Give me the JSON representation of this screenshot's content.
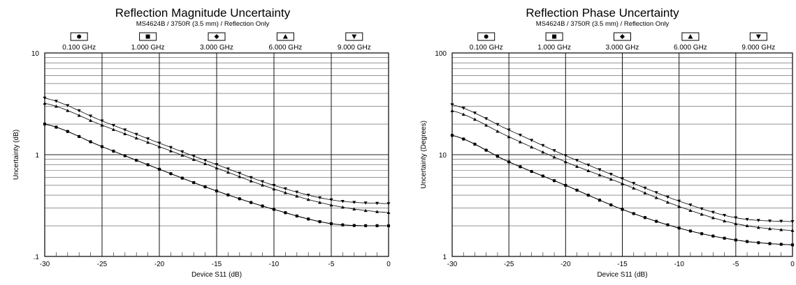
{
  "chart_data": [
    {
      "type": "line",
      "title": "Reflection Magnitude Uncertainty",
      "subtitle": "MS4624B / 3750R (3.5 mm) / Reflection Only",
      "xlabel": "Device S11 (dB)",
      "ylabel": "Uncertainty (dB)",
      "xlim": [
        -30,
        0
      ],
      "ylim": [
        0.1,
        10
      ],
      "yscale": "log",
      "grid": true,
      "legend_position": "top",
      "x_ticks": [
        "-30",
        "-25",
        "-20",
        "-15",
        "-10",
        "-5",
        "0"
      ],
      "y_ticks": [
        ".1",
        "1",
        "10"
      ],
      "x": [
        -30,
        -25,
        -20,
        -15,
        -10,
        -5,
        0
      ],
      "series": [
        {
          "name": "0.100 GHz",
          "marker": "circle",
          "values": [
            2.0,
            1.2,
            0.72,
            0.44,
            0.29,
            0.21,
            0.2
          ]
        },
        {
          "name": "1.000 GHz",
          "marker": "square",
          "values": [
            2.0,
            1.2,
            0.72,
            0.44,
            0.29,
            0.21,
            0.2
          ]
        },
        {
          "name": "3.000 GHz",
          "marker": "diamond",
          "values": [
            2.0,
            1.2,
            0.72,
            0.44,
            0.29,
            0.21,
            0.2
          ]
        },
        {
          "name": "6.000 GHz",
          "marker": "triangle-up",
          "values": [
            3.2,
            1.95,
            1.2,
            0.74,
            0.46,
            0.32,
            0.27
          ]
        },
        {
          "name": "9.000 GHz",
          "marker": "triangle-down",
          "values": [
            3.6,
            2.15,
            1.3,
            0.8,
            0.5,
            0.36,
            0.33
          ]
        }
      ]
    },
    {
      "type": "line",
      "title": "Reflection Phase Uncertainty",
      "subtitle": "MS4624B / 3750R (3.5 mm) / Reflection Only",
      "xlabel": "Device S11 (dB)",
      "ylabel": "Uncertainty (Degrees)",
      "xlim": [
        -30,
        0
      ],
      "ylim": [
        1,
        100
      ],
      "yscale": "log",
      "grid": true,
      "legend_position": "top",
      "x_ticks": [
        "-30",
        "-25",
        "-20",
        "-15",
        "-10",
        "-5",
        "0"
      ],
      "y_ticks": [
        "1",
        "10",
        "100"
      ],
      "x": [
        -30,
        -25,
        -20,
        -15,
        -10,
        -5,
        0
      ],
      "series": [
        {
          "name": "0.100 GHz",
          "marker": "circle",
          "values": [
            15.5,
            8.5,
            5.0,
            2.9,
            1.9,
            1.45,
            1.3
          ]
        },
        {
          "name": "1.000 GHz",
          "marker": "square",
          "values": [
            15.5,
            8.5,
            5.0,
            2.9,
            1.9,
            1.45,
            1.3
          ]
        },
        {
          "name": "3.000 GHz",
          "marker": "diamond",
          "values": [
            15.5,
            8.5,
            5.0,
            2.9,
            1.9,
            1.45,
            1.3
          ]
        },
        {
          "name": "6.000 GHz",
          "marker": "triangle-up",
          "values": [
            27.0,
            15.0,
            8.5,
            5.2,
            3.1,
            2.1,
            1.8
          ]
        },
        {
          "name": "9.000 GHz",
          "marker": "triangle-down",
          "values": [
            31.0,
            17.5,
            9.8,
            5.8,
            3.5,
            2.4,
            2.2
          ]
        }
      ]
    }
  ]
}
